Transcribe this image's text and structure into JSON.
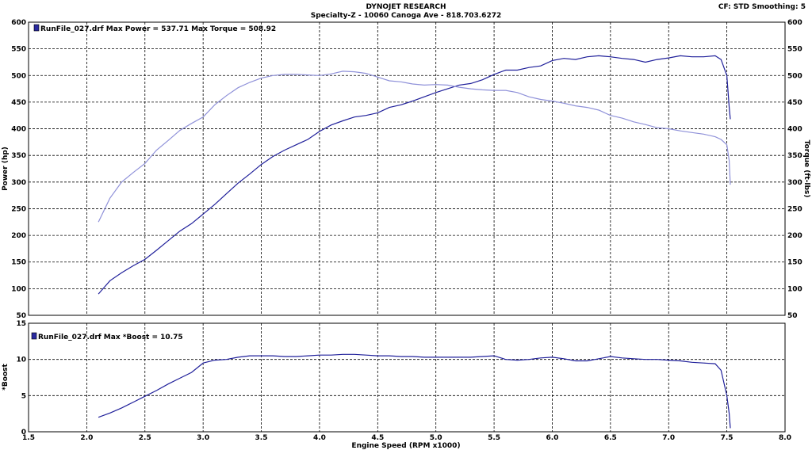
{
  "header": {
    "title": "DYNOJET RESEARCH",
    "subtitle": "Specialty-Z - 10060 Canoga Ave - 818.703.6272",
    "settings": "CF: STD  Smoothing: 5"
  },
  "colors": {
    "power": "#1f1f9a",
    "torque": "#8f91d9",
    "boost": "#1f1f9a",
    "legend_swatch": "#2a2aa0"
  },
  "chart_data": [
    {
      "type": "line",
      "legend_text": "RunFile_027.drf Max Power = 537.71     Max Torque = 508.92",
      "xlabel": "",
      "ylabel": "Power (hp)",
      "y2label": "Torque (ft-lbs)",
      "xlim": [
        1.5,
        8.0
      ],
      "ylim": [
        50,
        600
      ],
      "y2lim": [
        50,
        600
      ],
      "y_ticks": [
        50,
        100,
        150,
        200,
        250,
        300,
        350,
        400,
        450,
        500,
        550,
        600
      ],
      "grid": true,
      "series": [
        {
          "key": "power",
          "x": [
            2.1,
            2.2,
            2.3,
            2.4,
            2.5,
            2.6,
            2.7,
            2.8,
            2.9,
            3.0,
            3.1,
            3.2,
            3.3,
            3.4,
            3.5,
            3.6,
            3.7,
            3.8,
            3.9,
            4.0,
            4.1,
            4.2,
            4.3,
            4.4,
            4.5,
            4.6,
            4.7,
            4.8,
            4.9,
            5.0,
            5.1,
            5.2,
            5.3,
            5.4,
            5.5,
            5.6,
            5.7,
            5.8,
            5.9,
            6.0,
            6.1,
            6.2,
            6.3,
            6.4,
            6.5,
            6.6,
            6.7,
            6.8,
            6.9,
            7.0,
            7.1,
            7.2,
            7.3,
            7.4,
            7.45,
            7.5,
            7.52,
            7.53
          ],
          "values": [
            90,
            115,
            130,
            143,
            155,
            172,
            190,
            208,
            222,
            240,
            258,
            278,
            298,
            315,
            333,
            348,
            360,
            370,
            380,
            395,
            407,
            415,
            422,
            425,
            430,
            440,
            445,
            452,
            460,
            468,
            475,
            482,
            485,
            492,
            502,
            510,
            510,
            515,
            518,
            528,
            532,
            530,
            535,
            537,
            535,
            532,
            530,
            525,
            530,
            533,
            537,
            535,
            535,
            537,
            530,
            500,
            440,
            418
          ]
        },
        {
          "key": "torque",
          "x": [
            2.1,
            2.2,
            2.3,
            2.4,
            2.5,
            2.6,
            2.7,
            2.8,
            2.9,
            3.0,
            3.1,
            3.2,
            3.3,
            3.4,
            3.5,
            3.6,
            3.7,
            3.8,
            3.9,
            4.0,
            4.1,
            4.2,
            4.3,
            4.4,
            4.5,
            4.6,
            4.7,
            4.8,
            4.9,
            5.0,
            5.1,
            5.2,
            5.3,
            5.4,
            5.5,
            5.6,
            5.7,
            5.8,
            5.9,
            6.0,
            6.1,
            6.2,
            6.3,
            6.4,
            6.5,
            6.6,
            6.7,
            6.8,
            6.9,
            7.0,
            7.1,
            7.2,
            7.3,
            7.4,
            7.45,
            7.5,
            7.52,
            7.53
          ],
          "values": [
            225,
            270,
            300,
            318,
            335,
            360,
            378,
            397,
            410,
            422,
            445,
            462,
            477,
            487,
            495,
            500,
            502,
            502,
            501,
            500,
            503,
            508,
            507,
            504,
            497,
            490,
            488,
            484,
            482,
            483,
            482,
            478,
            475,
            473,
            472,
            472,
            468,
            460,
            455,
            452,
            448,
            443,
            440,
            435,
            425,
            420,
            413,
            408,
            402,
            400,
            396,
            393,
            390,
            385,
            380,
            370,
            340,
            295
          ]
        }
      ]
    },
    {
      "type": "line",
      "legend_text": "RunFile_027.drf Max *Boost = 10.75",
      "xlabel": "Engine Speed (RPM x1000)",
      "ylabel": "*Boost",
      "xlim": [
        1.5,
        8.0
      ],
      "ylim": [
        0,
        15
      ],
      "y_ticks": [
        0,
        5,
        10,
        15
      ],
      "x_ticks": [
        "1.5",
        "2.0",
        "2.5",
        "3.0",
        "3.5",
        "4.0",
        "4.5",
        "5.0",
        "5.5",
        "6.0",
        "6.5",
        "7.0",
        "7.5",
        "8.0"
      ],
      "grid": true,
      "series": [
        {
          "key": "boost",
          "x": [
            2.1,
            2.2,
            2.3,
            2.4,
            2.5,
            2.6,
            2.7,
            2.8,
            2.9,
            3.0,
            3.1,
            3.2,
            3.3,
            3.4,
            3.5,
            3.6,
            3.7,
            3.8,
            3.9,
            4.0,
            4.1,
            4.2,
            4.3,
            4.4,
            4.5,
            4.6,
            4.7,
            4.8,
            4.9,
            5.0,
            5.1,
            5.2,
            5.3,
            5.4,
            5.5,
            5.6,
            5.7,
            5.8,
            5.9,
            6.0,
            6.1,
            6.2,
            6.3,
            6.4,
            6.5,
            6.6,
            6.7,
            6.8,
            6.9,
            7.0,
            7.1,
            7.2,
            7.3,
            7.4,
            7.45,
            7.5,
            7.52,
            7.53
          ],
          "values": [
            2.0,
            2.6,
            3.3,
            4.1,
            4.9,
            5.7,
            6.6,
            7.4,
            8.2,
            9.5,
            9.9,
            10.0,
            10.3,
            10.5,
            10.5,
            10.5,
            10.4,
            10.4,
            10.5,
            10.6,
            10.6,
            10.7,
            10.7,
            10.6,
            10.5,
            10.5,
            10.4,
            10.4,
            10.3,
            10.3,
            10.3,
            10.3,
            10.3,
            10.4,
            10.5,
            10.0,
            9.9,
            10.0,
            10.2,
            10.3,
            10.1,
            9.8,
            9.8,
            10.1,
            10.4,
            10.2,
            10.1,
            10.0,
            10.0,
            9.9,
            9.8,
            9.6,
            9.5,
            9.4,
            8.5,
            5.0,
            2.5,
            0.5
          ]
        }
      ]
    }
  ]
}
